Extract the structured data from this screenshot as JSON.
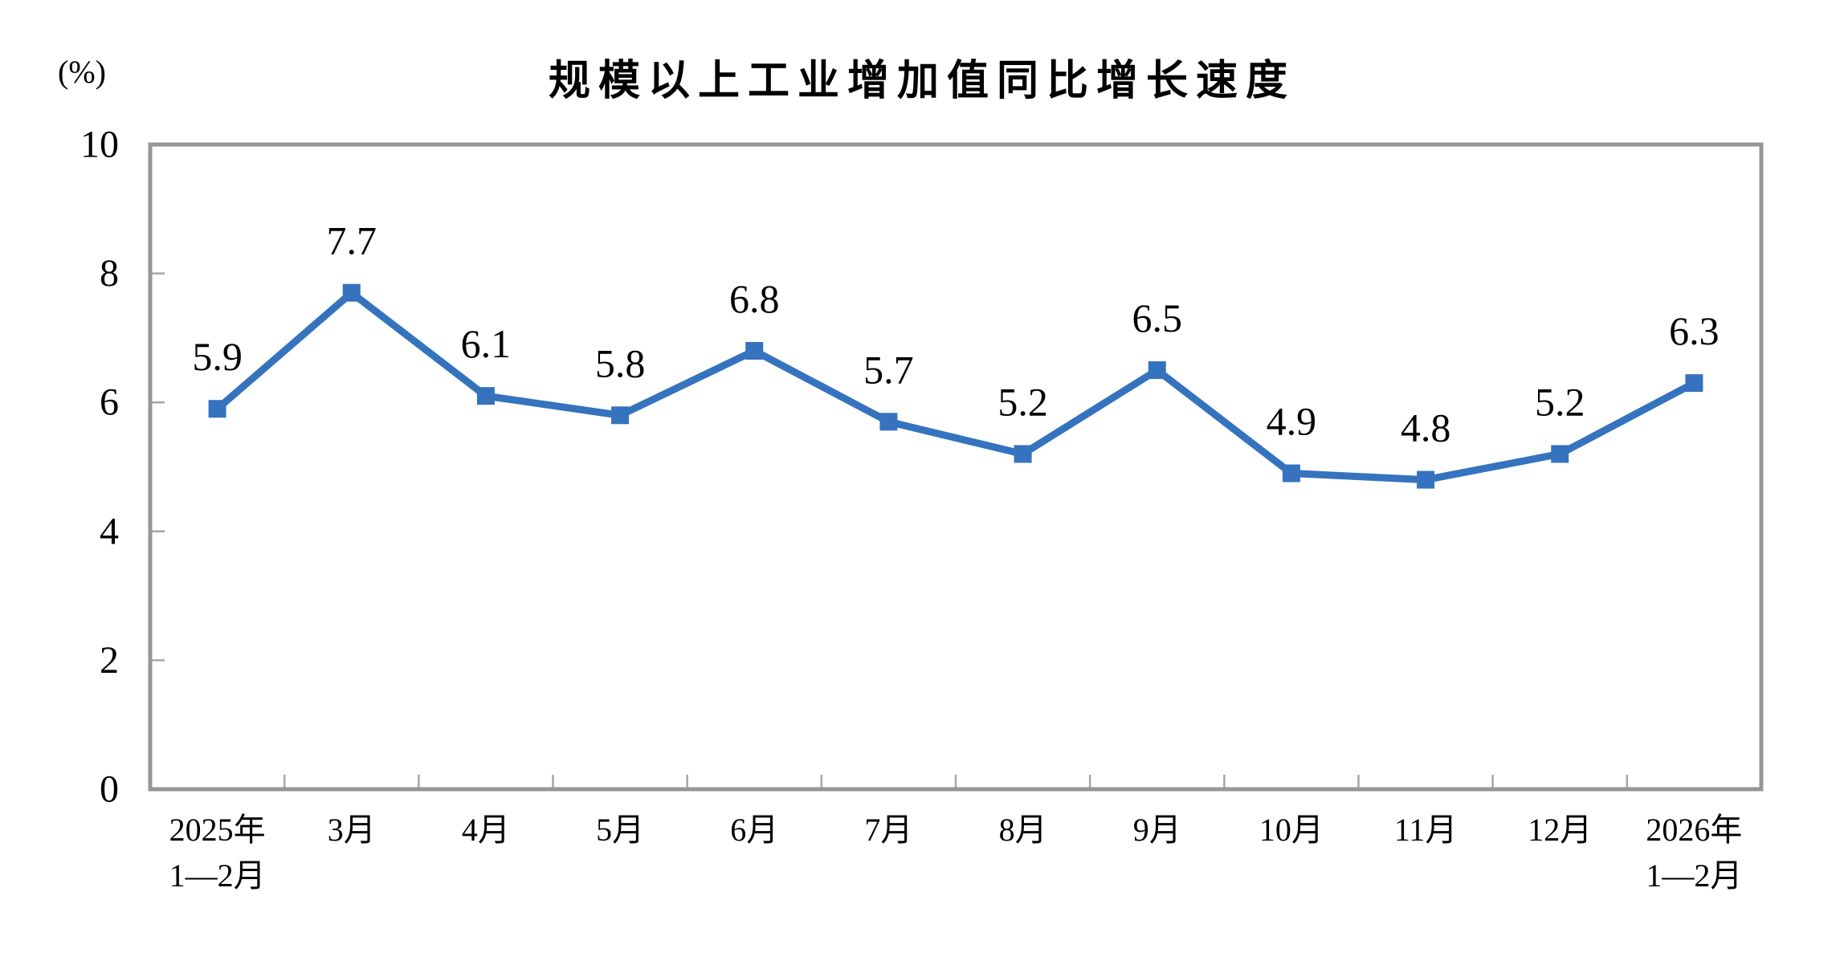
{
  "chart_data": {
    "type": "line",
    "title": "规模以上工业增加值同比增长速度",
    "ylabel": "(%)",
    "xlabel": "",
    "categories": [
      "2025年\n1—2月",
      "3月",
      "4月",
      "5月",
      "6月",
      "7月",
      "8月",
      "9月",
      "10月",
      "11月",
      "12月",
      "2026年\n1—2月"
    ],
    "values": [
      5.9,
      7.7,
      6.1,
      5.8,
      6.8,
      5.7,
      5.2,
      6.5,
      4.9,
      4.8,
      5.2,
      6.3
    ],
    "ylim": [
      0,
      10
    ],
    "yticks": [
      0,
      2,
      4,
      6,
      8,
      10
    ],
    "grid": false,
    "legend": "none",
    "data_labels_shown": true,
    "colors": {
      "line": "#3573BE",
      "marker": "#3573BE",
      "axis_border": "#969696",
      "tick_mark": "#A6A6A6",
      "text": "#000000"
    }
  }
}
